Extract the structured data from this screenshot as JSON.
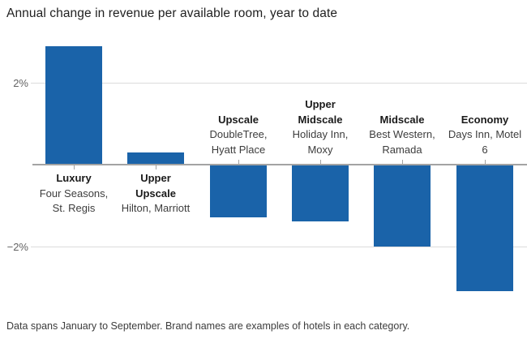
{
  "chart_data": {
    "type": "bar",
    "title": "Annual change in revenue per available room, year to date",
    "note": "Data spans January to September. Brand names are examples of hotels in each category.",
    "unit": "%",
    "ylim": [
      -3.4,
      3.0
    ],
    "grid": true,
    "legend": "none",
    "bar_color": "#1a63a9",
    "yticks": [
      {
        "value": 2,
        "label": "2%"
      },
      {
        "value": -2,
        "label": "−2%"
      }
    ],
    "categories": [
      "Luxury",
      "Upper Upscale",
      "Upscale",
      "Upper Midscale",
      "Midscale",
      "Economy"
    ],
    "brands": [
      "Four Seasons, St. Regis",
      "Hilton, Marriott",
      "DoubleTree, Hyatt Place",
      "Holiday Inn, Moxy",
      "Best Western, Ramada",
      "Days Inn, Motel 6"
    ],
    "values": [
      2.9,
      0.3,
      -1.3,
      -1.4,
      -2.0,
      -3.1
    ],
    "label_lines": [
      {
        "name": [
          "Luxury"
        ],
        "brands": [
          "Four Seasons,",
          "St. Regis"
        ]
      },
      {
        "name": [
          "Upper",
          "Upscale"
        ],
        "brands": [
          "Hilton, Marriott"
        ]
      },
      {
        "name": [
          "Upscale"
        ],
        "brands": [
          "DoubleTree,",
          "Hyatt Place"
        ]
      },
      {
        "name": [
          "Upper",
          "Midscale"
        ],
        "brands": [
          "Holiday Inn,",
          "Moxy"
        ]
      },
      {
        "name": [
          "Midscale"
        ],
        "brands": [
          "Best Western,",
          "Ramada"
        ]
      },
      {
        "name": [
          "Economy"
        ],
        "brands": [
          "Days Inn, Motel",
          "6"
        ]
      }
    ]
  }
}
